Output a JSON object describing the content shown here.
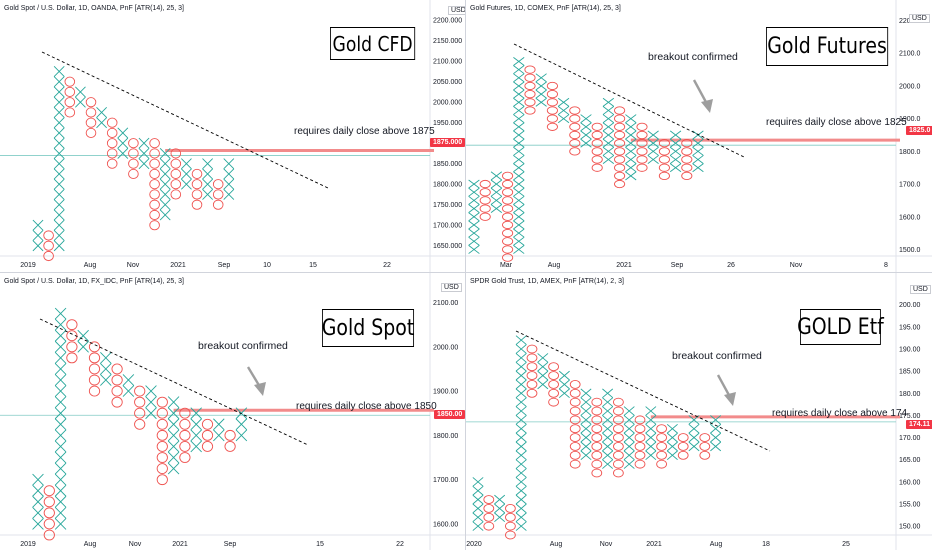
{
  "colors": {
    "x": "#26a69a",
    "o": "#ef5350",
    "level": "#f28b8b",
    "price_line": "#80cbc4",
    "trend": "#000000",
    "arrow": "#9e9e9e",
    "price_box": "#f23645"
  },
  "panels": [
    {
      "id": "cfd",
      "header": "Gold Spot / U.S. Dollar, 1D, OANDA, PnF [ATR(14), 25, 3]",
      "title": "Gold CFD",
      "currency": "USD",
      "price_label": "1875.000",
      "annotation": "requires daily close above 1875",
      "breakout": "",
      "y_ticks": [
        "2200.000",
        "2150.000",
        "2100.000",
        "2050.000",
        "2000.000",
        "1950.000",
        "1900.000",
        "1850.000",
        "1800.000",
        "1750.000",
        "1700.000",
        "1650.000"
      ],
      "x_ticks": [
        "2019",
        "Aug",
        "Nov",
        "2021",
        "Sep",
        "10",
        "15",
        "22"
      ]
    },
    {
      "id": "futures",
      "header": "Gold Futures, 1D, COMEX, PnF [ATR(14), 25, 3]",
      "title": "Gold Futures",
      "currency": "USD",
      "price_label": "1825.0",
      "annotation": "requires daily close above 1825",
      "breakout": "breakout confirmed",
      "y_ticks": [
        "2200.0",
        "2100.0",
        "2000.0",
        "1900.0",
        "1800.0",
        "1700.0",
        "1600.0",
        "1500.0"
      ],
      "x_ticks": [
        "Mar",
        "Aug",
        "2021",
        "Sep",
        "26",
        "Nov",
        "8"
      ]
    },
    {
      "id": "spot",
      "header": "Gold Spot / U.S. Dollar, 1D, FX_IDC, PnF [ATR(14), 25, 3]",
      "title": "Gold Spot",
      "currency": "USD",
      "price_label": "1850.00",
      "annotation": "requires daily close above 1850",
      "breakout": "breakout confirmed",
      "y_ticks": [
        "2100.00",
        "2000.00",
        "1900.00",
        "1800.00",
        "1700.00",
        "1600.00"
      ],
      "x_ticks": [
        "2019",
        "Aug",
        "Nov",
        "2021",
        "Sep",
        "15",
        "22"
      ]
    },
    {
      "id": "etf",
      "header": "SPDR Gold Trust, 1D, AMEX, PnF [ATR(14), 2, 3]",
      "title": "GOLD Etf",
      "currency": "USD",
      "price_label": "174.11",
      "annotation": "requires daily close above 174",
      "breakout": "breakout confirmed",
      "y_ticks": [
        "200.00",
        "195.00",
        "190.00",
        "185.00",
        "180.00",
        "175.00",
        "170.00",
        "165.00",
        "160.00",
        "155.00",
        "150.00"
      ],
      "x_ticks": [
        "2020",
        "Aug",
        "Nov",
        "2021",
        "Aug",
        "18",
        "25"
      ]
    }
  ],
  "chart_data": [
    {
      "type": "point-and-figure",
      "title": "Gold CFD",
      "box_size": 25,
      "reversal": 3,
      "ylim": [
        1625,
        2215
      ],
      "close_level": 1875,
      "columns": [
        {
          "t": "X",
          "lo": 1650,
          "hi": 1700
        },
        {
          "t": "O",
          "lo": 1625,
          "hi": 1675
        },
        {
          "t": "X",
          "lo": 1650,
          "hi": 2075
        },
        {
          "t": "O",
          "lo": 1975,
          "hi": 2050
        },
        {
          "t": "X",
          "lo": 2000,
          "hi": 2025
        },
        {
          "t": "O",
          "lo": 1925,
          "hi": 2000
        },
        {
          "t": "X",
          "lo": 1950,
          "hi": 1975
        },
        {
          "t": "O",
          "lo": 1850,
          "hi": 1950
        },
        {
          "t": "X",
          "lo": 1875,
          "hi": 1925
        },
        {
          "t": "O",
          "lo": 1825,
          "hi": 1900
        },
        {
          "t": "X",
          "lo": 1850,
          "hi": 1900
        },
        {
          "t": "O",
          "lo": 1700,
          "hi": 1900
        },
        {
          "t": "X",
          "lo": 1725,
          "hi": 1875
        },
        {
          "t": "O",
          "lo": 1775,
          "hi": 1875
        },
        {
          "t": "X",
          "lo": 1800,
          "hi": 1850
        },
        {
          "t": "O",
          "lo": 1750,
          "hi": 1825
        },
        {
          "t": "X",
          "lo": 1775,
          "hi": 1850
        },
        {
          "t": "O",
          "lo": 1750,
          "hi": 1800
        },
        {
          "t": "X",
          "lo": 1775,
          "hi": 1850
        }
      ]
    },
    {
      "type": "point-and-figure",
      "title": "Gold Futures",
      "box_size": 25,
      "reversal": 3,
      "ylim": [
        1480,
        2220
      ],
      "close_level": 1825,
      "columns": [
        {
          "t": "X",
          "lo": 1500,
          "hi": 1700
        },
        {
          "t": "O",
          "lo": 1600,
          "hi": 1700
        },
        {
          "t": "X",
          "lo": 1625,
          "hi": 1725
        },
        {
          "t": "O",
          "lo": 1475,
          "hi": 1725
        },
        {
          "t": "X",
          "lo": 1500,
          "hi": 2075
        },
        {
          "t": "O",
          "lo": 1925,
          "hi": 2050
        },
        {
          "t": "X",
          "lo": 1950,
          "hi": 2025
        },
        {
          "t": "O",
          "lo": 1875,
          "hi": 2000
        },
        {
          "t": "X",
          "lo": 1900,
          "hi": 1950
        },
        {
          "t": "O",
          "lo": 1800,
          "hi": 1925
        },
        {
          "t": "X",
          "lo": 1825,
          "hi": 1900
        },
        {
          "t": "O",
          "lo": 1750,
          "hi": 1875
        },
        {
          "t": "X",
          "lo": 1775,
          "hi": 1950
        },
        {
          "t": "O",
          "lo": 1700,
          "hi": 1925
        },
        {
          "t": "X",
          "lo": 1725,
          "hi": 1900
        },
        {
          "t": "O",
          "lo": 1750,
          "hi": 1875
        },
        {
          "t": "X",
          "lo": 1775,
          "hi": 1850
        },
        {
          "t": "O",
          "lo": 1725,
          "hi": 1825
        },
        {
          "t": "X",
          "lo": 1750,
          "hi": 1850
        },
        {
          "t": "O",
          "lo": 1725,
          "hi": 1825
        },
        {
          "t": "X",
          "lo": 1750,
          "hi": 1850
        }
      ]
    },
    {
      "type": "point-and-figure",
      "title": "Gold Spot",
      "box_size": 25,
      "reversal": 3,
      "ylim": [
        1575,
        2135
      ],
      "close_level": 1850,
      "columns": [
        {
          "t": "X",
          "lo": 1600,
          "hi": 1700
        },
        {
          "t": "O",
          "lo": 1575,
          "hi": 1675
        },
        {
          "t": "X",
          "lo": 1600,
          "hi": 2075
        },
        {
          "t": "O",
          "lo": 1975,
          "hi": 2050
        },
        {
          "t": "X",
          "lo": 2000,
          "hi": 2025
        },
        {
          "t": "O",
          "lo": 1900,
          "hi": 2000
        },
        {
          "t": "X",
          "lo": 1925,
          "hi": 1975
        },
        {
          "t": "O",
          "lo": 1875,
          "hi": 1950
        },
        {
          "t": "X",
          "lo": 1900,
          "hi": 1925
        },
        {
          "t": "O",
          "lo": 1825,
          "hi": 1900
        },
        {
          "t": "X",
          "lo": 1850,
          "hi": 1900
        },
        {
          "t": "O",
          "lo": 1700,
          "hi": 1875
        },
        {
          "t": "X",
          "lo": 1725,
          "hi": 1875
        },
        {
          "t": "O",
          "lo": 1750,
          "hi": 1850
        },
        {
          "t": "X",
          "lo": 1775,
          "hi": 1850
        },
        {
          "t": "O",
          "lo": 1775,
          "hi": 1825
        },
        {
          "t": "X",
          "lo": 1800,
          "hi": 1825
        },
        {
          "t": "O",
          "lo": 1775,
          "hi": 1800
        },
        {
          "t": "X",
          "lo": 1800,
          "hi": 1850
        }
      ]
    },
    {
      "type": "point-and-figure",
      "title": "GOLD Etf",
      "box_size": 2,
      "reversal": 3,
      "ylim": [
        148,
        204
      ],
      "close_level": 174,
      "columns": [
        {
          "t": "X",
          "lo": 150,
          "hi": 160
        },
        {
          "t": "O",
          "lo": 150,
          "hi": 156
        },
        {
          "t": "X",
          "lo": 152,
          "hi": 156
        },
        {
          "t": "O",
          "lo": 148,
          "hi": 154
        },
        {
          "t": "X",
          "lo": 150,
          "hi": 192
        },
        {
          "t": "O",
          "lo": 180,
          "hi": 190
        },
        {
          "t": "X",
          "lo": 182,
          "hi": 188
        },
        {
          "t": "O",
          "lo": 178,
          "hi": 186
        },
        {
          "t": "X",
          "lo": 180,
          "hi": 184
        },
        {
          "t": "O",
          "lo": 164,
          "hi": 182
        },
        {
          "t": "X",
          "lo": 166,
          "hi": 180
        },
        {
          "t": "O",
          "lo": 162,
          "hi": 178
        },
        {
          "t": "X",
          "lo": 164,
          "hi": 180
        },
        {
          "t": "O",
          "lo": 162,
          "hi": 178
        },
        {
          "t": "X",
          "lo": 164,
          "hi": 176
        },
        {
          "t": "O",
          "lo": 164,
          "hi": 174
        },
        {
          "t": "X",
          "lo": 166,
          "hi": 176
        },
        {
          "t": "O",
          "lo": 164,
          "hi": 172
        },
        {
          "t": "X",
          "lo": 166,
          "hi": 172
        },
        {
          "t": "O",
          "lo": 166,
          "hi": 170
        },
        {
          "t": "X",
          "lo": 168,
          "hi": 174
        },
        {
          "t": "O",
          "lo": 166,
          "hi": 170
        },
        {
          "t": "X",
          "lo": 168,
          "hi": 174
        }
      ]
    }
  ]
}
